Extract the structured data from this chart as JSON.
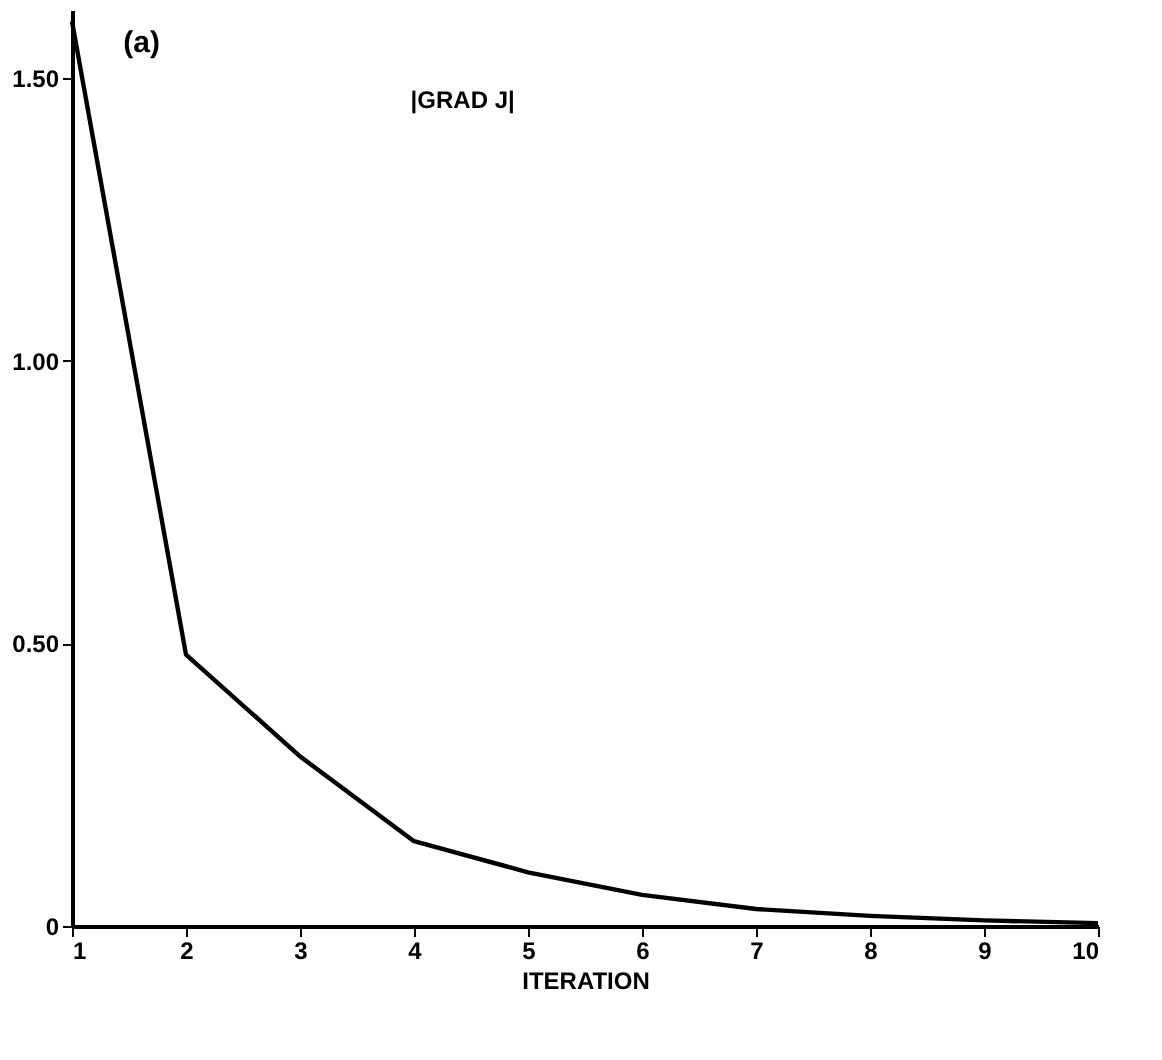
{
  "chart_data": {
    "type": "line",
    "xlabel": "ITERATION",
    "annotations": [
      "(a)",
      "|GRAD J|"
    ],
    "x": [
      1,
      2,
      3,
      4,
      5,
      6,
      7,
      8,
      9,
      10
    ],
    "series": [
      {
        "color": "#000000",
        "values": [
          1.6,
          0.48,
          0.3,
          0.15,
          0.095,
          0.055,
          0.03,
          0.018,
          0.01,
          0.005
        ]
      }
    ],
    "xlim": [
      1,
      10
    ],
    "xticks": [
      1,
      2,
      3,
      4,
      5,
      6,
      7,
      8,
      9,
      10
    ],
    "ylim": [
      0,
      1.62
    ],
    "yticks": [
      0,
      {
        "value": 0.5,
        "label": "0.50"
      },
      {
        "value": 1,
        "label": "1.00"
      },
      {
        "value": 1.5,
        "label": "1.50"
      }
    ],
    "grid": false,
    "marker": "none",
    "line_style": "solid"
  }
}
